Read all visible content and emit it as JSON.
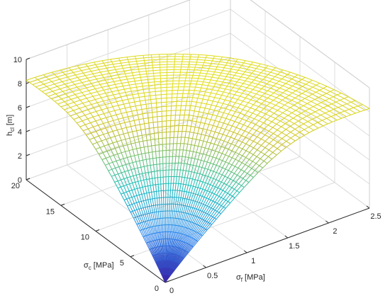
{
  "chart_data": {
    "type": "surface",
    "title": "",
    "axes": {
      "x": {
        "label_symbol": "σ",
        "label_subscript": "f",
        "label_unit": "[MPa]",
        "range": [
          0,
          2.5
        ],
        "ticks": [
          "0",
          "0.5",
          "1",
          "1.5",
          "2",
          "2.5"
        ]
      },
      "y": {
        "label_symbol": "σ",
        "label_subscript": "c",
        "label_unit": "[MPa]",
        "range": [
          0,
          20
        ],
        "ticks": [
          "0",
          "5",
          "10",
          "15",
          "20"
        ]
      },
      "z": {
        "label_symbol": "h",
        "label_subscript": "cl",
        "label_unit": "[m]",
        "range": [
          0,
          10
        ],
        "ticks": [
          "0",
          "2",
          "4",
          "6",
          "8",
          "10"
        ]
      }
    },
    "surface": {
      "description_points": [
        {
          "x": 0,
          "y": 0,
          "z": 0
        },
        {
          "x": 0,
          "y": 20,
          "z": 8.2
        },
        {
          "x": 2.5,
          "y": 0,
          "z": 8.2
        },
        {
          "x": 0.9,
          "y": 7,
          "z": 10
        }
      ],
      "peak": {
        "x": 0.9,
        "y": 7,
        "z": 10
      }
    },
    "grid": true,
    "colormap": "parula",
    "colors": {
      "low": "#3e26a8",
      "mid": "#17beb8",
      "high": "#f9fb0e"
    }
  }
}
